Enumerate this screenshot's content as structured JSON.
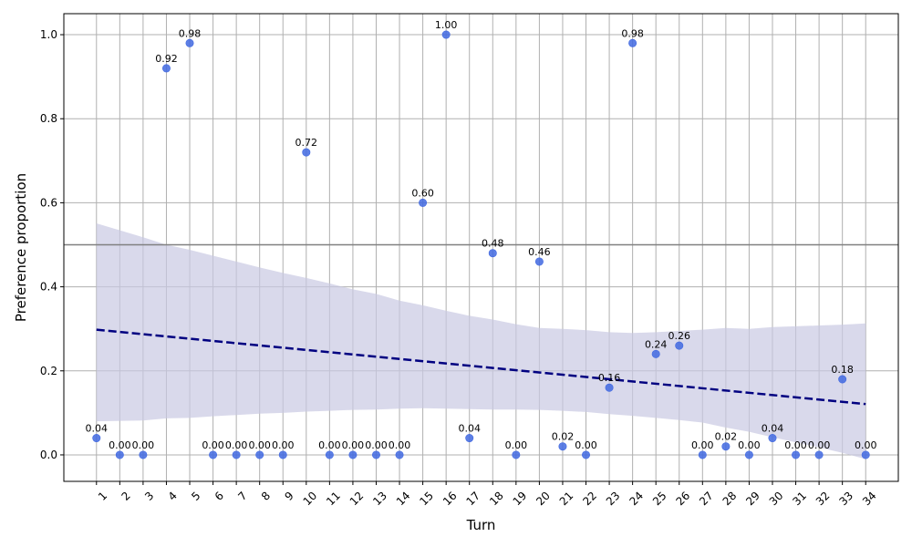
{
  "chart_data": {
    "type": "scatter",
    "title": "",
    "xlabel": "Turn",
    "ylabel": "Preference proportion",
    "x": [
      1,
      2,
      3,
      4,
      5,
      6,
      7,
      8,
      9,
      10,
      11,
      12,
      13,
      14,
      15,
      16,
      17,
      18,
      19,
      20,
      21,
      22,
      23,
      24,
      25,
      26,
      27,
      28,
      29,
      30,
      31,
      32,
      33,
      34
    ],
    "x_tick_labels": [
      "1",
      "2",
      "3",
      "4",
      "5",
      "6",
      "7",
      "8",
      "9",
      "10",
      "11",
      "12",
      "13",
      "14",
      "15",
      "16",
      "17",
      "18",
      "19",
      "20",
      "21",
      "22",
      "23",
      "24",
      "25",
      "26",
      "27",
      "28",
      "29",
      "30",
      "31",
      "32",
      "33",
      "34"
    ],
    "values": [
      0.04,
      0.0,
      0.0,
      0.92,
      0.98,
      0.0,
      0.0,
      0.0,
      0.0,
      0.72,
      0.0,
      0.0,
      0.0,
      0.0,
      0.6,
      1.0,
      0.04,
      0.48,
      0.0,
      0.46,
      0.02,
      0.0,
      0.16,
      0.98,
      0.24,
      0.26,
      0.0,
      0.02,
      0.0,
      0.04,
      0.0,
      0.0,
      0.18,
      0.0
    ],
    "data_labels": [
      "0.04",
      "0.00",
      "0.00",
      "0.92",
      "0.98",
      "0.00",
      "0.00",
      "0.00",
      "0.00",
      "0.72",
      "0.00",
      "0.00",
      "0.00",
      "0.00",
      "0.60",
      "1.00",
      "0.04",
      "0.48",
      "0.00",
      "0.46",
      "0.02",
      "0.00",
      "0.16",
      "0.98",
      "0.24",
      "0.26",
      "0.00",
      "0.02",
      "0.00",
      "0.04",
      "0.00",
      "0.00",
      "0.18",
      "0.00"
    ],
    "y_ticks": [
      0.0,
      0.2,
      0.4,
      0.6,
      0.8,
      1.0
    ],
    "y_tick_labels": [
      "0.0",
      "0.2",
      "0.4",
      "0.6",
      "0.8",
      "1.0"
    ],
    "xlim": [
      -0.4,
      35.4
    ],
    "ylim": [
      -0.063,
      1.05
    ],
    "reference_line_y": 0.5,
    "trend_line": {
      "x": [
        1,
        34
      ],
      "y": [
        0.298,
        0.121
      ],
      "style": "dashed"
    },
    "confidence_band": {
      "x": [
        1,
        3,
        4,
        5,
        6,
        7,
        8,
        9,
        10,
        11,
        12,
        13,
        14,
        15,
        16,
        17,
        18,
        19,
        20,
        21,
        22,
        23,
        24,
        25,
        26,
        27,
        28,
        29,
        30,
        31,
        32,
        33,
        34
      ],
      "upper": [
        0.551,
        0.518,
        0.5,
        0.488,
        0.474,
        0.46,
        0.446,
        0.433,
        0.421,
        0.408,
        0.394,
        0.383,
        0.367,
        0.356,
        0.343,
        0.331,
        0.322,
        0.311,
        0.302,
        0.3,
        0.297,
        0.292,
        0.29,
        0.292,
        0.295,
        0.298,
        0.302,
        0.3,
        0.304,
        0.306,
        0.308,
        0.31,
        0.313
      ],
      "lower": [
        0.08,
        0.082,
        0.087,
        0.088,
        0.092,
        0.095,
        0.098,
        0.1,
        0.103,
        0.105,
        0.107,
        0.108,
        0.11,
        0.111,
        0.11,
        0.109,
        0.108,
        0.108,
        0.107,
        0.105,
        0.102,
        0.097,
        0.093,
        0.088,
        0.083,
        0.077,
        0.065,
        0.055,
        0.042,
        0.03,
        0.018,
        0.005,
        -0.01
      ]
    },
    "grid": true,
    "legend": "none",
    "colors": {
      "points": "#4169E1",
      "trend": "#000080",
      "band": "#c9c9e2",
      "reference": "#808080",
      "grid": "#b0b0b0"
    }
  }
}
